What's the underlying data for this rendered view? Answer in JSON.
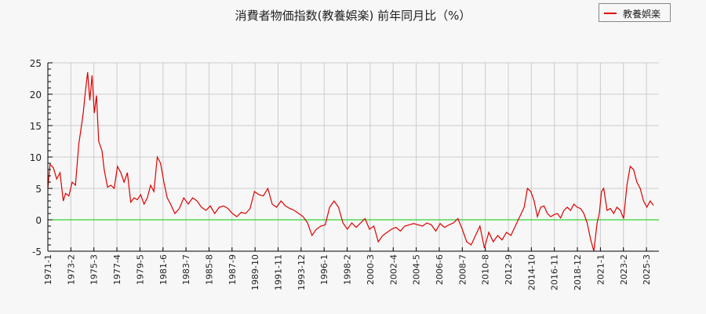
{
  "title": "消費者物価指数(教養娯楽) 前年同月比（%）",
  "legend": {
    "items": [
      {
        "label": "教養娯楽",
        "color": "#e00000"
      }
    ]
  },
  "colors": {
    "series": "#e00000",
    "zero_line": "#00cc00",
    "grid": "#cccccc",
    "axis": "#000000",
    "background": "#f7f7f7"
  },
  "chart_data": {
    "type": "line",
    "title": "消費者物価指数(教養娯楽) 前年同月比（%）",
    "xlabel": "",
    "ylabel": "",
    "ylim": [
      -5,
      25
    ],
    "yticks": [
      -5,
      0,
      5,
      10,
      15,
      20,
      25
    ],
    "grid": true,
    "legend_position": "top-right",
    "xtick_labels": [
      "1971-1",
      "1973-2",
      "1975-3",
      "1977-4",
      "1979-5",
      "1981-6",
      "1983-7",
      "1985-8",
      "1987-9",
      "1989-10",
      "1991-11",
      "1993-12",
      "1996-1",
      "1998-2",
      "2000-3",
      "2002-4",
      "2004-5",
      "2006-6",
      "2008-7",
      "2010-8",
      "2012-9",
      "2014-10",
      "2016-11",
      "2018-12",
      "2021-1",
      "2023-2",
      "2025-3"
    ],
    "series": [
      {
        "name": "教養娯楽",
        "x": [
          1971.0,
          1971.2,
          1971.5,
          1971.8,
          1972.1,
          1972.4,
          1972.6,
          1972.9,
          1973.2,
          1973.5,
          1973.8,
          1974.0,
          1974.2,
          1974.4,
          1974.6,
          1974.8,
          1975.0,
          1975.2,
          1975.4,
          1975.6,
          1975.9,
          1976.1,
          1976.4,
          1976.7,
          1977.0,
          1977.3,
          1977.6,
          1977.9,
          1978.2,
          1978.5,
          1978.8,
          1979.1,
          1979.4,
          1979.7,
          1980.0,
          1980.3,
          1980.6,
          1980.9,
          1981.2,
          1981.5,
          1981.8,
          1982.1,
          1982.5,
          1982.9,
          1983.3,
          1983.7,
          1984.1,
          1984.5,
          1984.9,
          1985.3,
          1985.7,
          1986.1,
          1986.5,
          1986.9,
          1987.3,
          1987.7,
          1988.1,
          1988.5,
          1988.9,
          1989.3,
          1989.7,
          1990.1,
          1990.5,
          1990.9,
          1991.3,
          1991.7,
          1992.1,
          1992.5,
          1992.9,
          1993.3,
          1993.7,
          1994.1,
          1994.5,
          1994.9,
          1995.3,
          1995.7,
          1996.1,
          1996.5,
          1996.9,
          1997.3,
          1997.7,
          1998.1,
          1998.5,
          1998.9,
          1999.3,
          1999.7,
          2000.1,
          2000.5,
          2000.9,
          2001.3,
          2001.7,
          2002.1,
          2002.5,
          2002.9,
          2003.3,
          2003.7,
          2004.1,
          2004.5,
          2004.9,
          2005.3,
          2005.7,
          2006.1,
          2006.5,
          2006.9,
          2007.3,
          2007.7,
          2008.1,
          2008.5,
          2008.9,
          2009.3,
          2009.7,
          2010.1,
          2010.5,
          2010.9,
          2011.3,
          2011.7,
          2012.1,
          2012.5,
          2012.9,
          2013.3,
          2013.7,
          2014.1,
          2014.4,
          2014.7,
          2015.0,
          2015.3,
          2015.6,
          2015.9,
          2016.2,
          2016.5,
          2016.8,
          2017.1,
          2017.4,
          2017.7,
          2018.0,
          2018.3,
          2018.6,
          2018.9,
          2019.2,
          2019.5,
          2019.8,
          2020.1,
          2020.4,
          2020.7,
          2020.9,
          2021.1,
          2021.3,
          2021.6,
          2021.9,
          2022.2,
          2022.5,
          2022.8,
          2023.1,
          2023.4,
          2023.7,
          2024.0,
          2024.3,
          2024.6,
          2024.9,
          2025.2,
          2025.5,
          2025.8
        ],
        "values": [
          5.0,
          8.8,
          8.3,
          6.5,
          7.5,
          3.0,
          4.2,
          3.8,
          6.0,
          5.5,
          12.0,
          14.5,
          17.0,
          20.5,
          23.5,
          19.0,
          23.0,
          17.0,
          19.8,
          12.5,
          11.0,
          8.0,
          5.2,
          5.5,
          5.0,
          8.5,
          7.5,
          6.0,
          7.5,
          2.8,
          3.5,
          3.2,
          4.0,
          2.5,
          3.5,
          5.5,
          4.5,
          10.0,
          9.0,
          6.0,
          3.5,
          2.5,
          1.0,
          1.8,
          3.5,
          2.5,
          3.5,
          3.0,
          2.0,
          1.5,
          2.2,
          1.0,
          2.0,
          2.2,
          1.8,
          1.0,
          0.5,
          1.2,
          1.0,
          1.8,
          4.5,
          4.0,
          3.8,
          5.0,
          2.5,
          2.0,
          3.0,
          2.2,
          1.8,
          1.5,
          1.0,
          0.5,
          -0.5,
          -2.5,
          -1.5,
          -1.0,
          -0.8,
          2.0,
          3.0,
          2.0,
          -0.5,
          -1.5,
          -0.5,
          -1.2,
          -0.5,
          0.2,
          -1.5,
          -1.0,
          -3.5,
          -2.5,
          -2.0,
          -1.5,
          -1.2,
          -1.8,
          -1.0,
          -0.8,
          -0.6,
          -0.8,
          -1.0,
          -0.5,
          -0.8,
          -1.8,
          -0.6,
          -1.2,
          -0.8,
          -0.5,
          0.2,
          -1.5,
          -3.5,
          -4.0,
          -2.5,
          -1.0,
          -4.5,
          -2.0,
          -3.5,
          -2.5,
          -3.2,
          -2.0,
          -2.5,
          -1.0,
          0.5,
          2.0,
          5.0,
          4.5,
          3.0,
          0.5,
          2.0,
          2.2,
          1.0,
          0.5,
          0.8,
          1.0,
          0.3,
          1.5,
          2.0,
          1.5,
          2.5,
          2.0,
          1.8,
          1.0,
          -0.5,
          -3.0,
          -5.0,
          -0.5,
          1.0,
          4.5,
          5.0,
          1.5,
          1.8,
          1.0,
          2.0,
          1.5,
          0.2,
          5.5,
          8.5,
          8.0,
          6.0,
          5.0,
          3.0,
          2.0,
          3.0,
          2.3
        ]
      }
    ]
  }
}
